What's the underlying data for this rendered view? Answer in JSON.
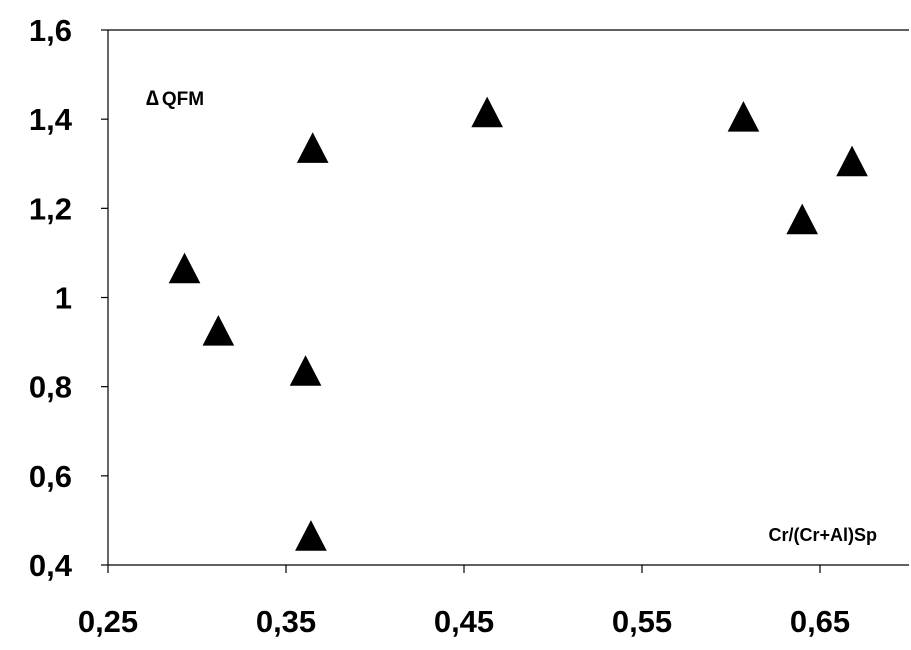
{
  "chart_data": {
    "type": "scatter",
    "title": "",
    "annotations": {
      "y_label_symbol": "∆",
      "y_label_text": "QFM",
      "x_label": "Cr/(Cr+Al)Sp"
    },
    "xlim": [
      0.25,
      0.7
    ],
    "ylim": [
      0.4,
      1.6
    ],
    "x_ticks": [
      0.25,
      0.35,
      0.45,
      0.55,
      0.65
    ],
    "x_tick_labels": [
      "0,25",
      "0,35",
      "0,45",
      "0,55",
      "0,65"
    ],
    "y_ticks": [
      0.4,
      0.6,
      0.8,
      1.0,
      1.2,
      1.4,
      1.6
    ],
    "y_tick_labels": [
      "0,4",
      "0,6",
      "0,8",
      "1",
      "1,2",
      "1,4",
      "1,6"
    ],
    "grid": false,
    "marker": "triangle",
    "marker_color": "#000000",
    "series": [
      {
        "x": [
          0.293,
          0.312,
          0.361,
          0.364,
          0.365,
          0.463,
          0.607,
          0.64,
          0.668
        ],
        "y": [
          1.06,
          0.92,
          0.83,
          0.46,
          1.33,
          1.41,
          1.4,
          1.17,
          1.3
        ]
      }
    ]
  }
}
